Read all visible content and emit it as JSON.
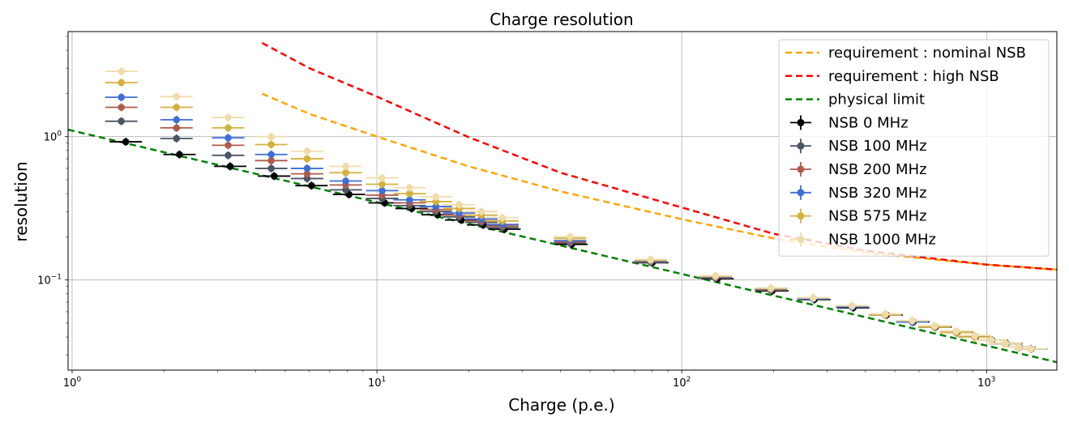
{
  "chart_data": {
    "type": "scatter",
    "title": "Charge resolution",
    "xlabel": "Charge (p.e.)",
    "ylabel": "resolution",
    "xscale": "log",
    "yscale": "log",
    "xlim": [
      0.97,
      1700
    ],
    "ylim": [
      0.0235,
      5.4
    ],
    "grid": true,
    "legend_position": "top-right",
    "x_ticks": [
      {
        "value": 1,
        "base": "10",
        "exp": "0"
      },
      {
        "value": 10,
        "base": "10",
        "exp": "1"
      },
      {
        "value": 100,
        "base": "10",
        "exp": "2"
      },
      {
        "value": 1000,
        "base": "10",
        "exp": "3"
      }
    ],
    "y_ticks": [
      {
        "value": 0.1,
        "base": "10",
        "exp": "−1"
      },
      {
        "value": 1,
        "base": "10",
        "exp": "0"
      }
    ],
    "curves": [
      {
        "name": "requirement : nominal NSB",
        "color": "#ffa500",
        "x": [
          4.2,
          6,
          10,
          20,
          40,
          100,
          200,
          400,
          1000,
          1700
        ],
        "y": [
          1.99,
          1.44,
          1.0,
          0.62,
          0.415,
          0.265,
          0.195,
          0.155,
          0.128,
          0.118
        ]
      },
      {
        "name": "requirement : high NSB",
        "color": "#ff0000",
        "x": [
          4.2,
          6,
          10,
          20,
          40,
          100,
          200,
          400,
          1000,
          1700
        ],
        "y": [
          4.5,
          3.0,
          1.9,
          0.99,
          0.56,
          0.32,
          0.21,
          0.16,
          0.128,
          0.118
        ]
      },
      {
        "name": "physical limit",
        "color": "#008000",
        "x": [
          0.97,
          1700
        ],
        "y": [
          1.117,
          0.0267
        ]
      }
    ],
    "series": [
      {
        "name": "NSB 0 MHz",
        "color": "#000000",
        "x": [
          1.5,
          2.25,
          3.3,
          4.6,
          6.1,
          8.1,
          10.6,
          13.0,
          15.8,
          18.9,
          22.3,
          26.2,
          43.5,
          80,
          131,
          198,
          272,
          365,
          470,
          575,
          680,
          800,
          920,
          1040,
          1160,
          1280,
          1400
        ],
        "y": [
          0.92,
          0.75,
          0.62,
          0.53,
          0.455,
          0.395,
          0.345,
          0.315,
          0.285,
          0.262,
          0.242,
          0.226,
          0.177,
          0.132,
          0.102,
          0.084,
          0.073,
          0.064,
          0.057,
          0.051,
          0.047,
          0.043,
          0.04,
          0.038,
          0.036,
          0.034,
          0.033
        ]
      },
      {
        "name": "NSB 100 MHz",
        "color": "#4a5563",
        "x": [
          1.45,
          2.2,
          3.25,
          4.5,
          5.9,
          7.9,
          10.4,
          12.8,
          15.6,
          18.6,
          22.0,
          25.8,
          43.0,
          79,
          129,
          196,
          270,
          362,
          465,
          570,
          675,
          795,
          915,
          1035,
          1155,
          1275,
          1395
        ],
        "y": [
          1.28,
          0.97,
          0.74,
          0.6,
          0.51,
          0.425,
          0.37,
          0.33,
          0.3,
          0.275,
          0.252,
          0.232,
          0.181,
          0.133,
          0.103,
          0.085,
          0.074,
          0.065,
          0.057,
          0.051,
          0.047,
          0.043,
          0.04,
          0.038,
          0.036,
          0.034,
          0.033
        ]
      },
      {
        "name": "NSB 200 MHz",
        "color": "#b05a4c",
        "x": [
          1.45,
          2.2,
          3.25,
          4.5,
          5.9,
          7.9,
          10.4,
          12.8,
          15.6,
          18.6,
          22.0,
          25.8,
          43.0,
          79,
          129,
          196,
          270,
          362,
          465,
          570,
          675,
          795,
          915,
          1035,
          1155,
          1275,
          1395
        ],
        "y": [
          1.6,
          1.15,
          0.87,
          0.68,
          0.55,
          0.46,
          0.39,
          0.345,
          0.31,
          0.283,
          0.258,
          0.238,
          0.184,
          0.134,
          0.104,
          0.085,
          0.074,
          0.065,
          0.057,
          0.051,
          0.047,
          0.043,
          0.04,
          0.038,
          0.036,
          0.034,
          0.033
        ]
      },
      {
        "name": "NSB 320 MHz",
        "color": "#3f6fd6",
        "x": [
          1.45,
          2.2,
          3.25,
          4.5,
          5.9,
          7.9,
          10.4,
          12.8,
          15.6,
          18.6,
          22.0,
          25.8,
          43.0,
          79,
          129,
          196,
          270,
          362,
          465,
          570,
          675,
          795,
          915,
          1035,
          1155,
          1275,
          1395
        ],
        "y": [
          1.88,
          1.31,
          0.98,
          0.75,
          0.6,
          0.49,
          0.42,
          0.362,
          0.325,
          0.293,
          0.266,
          0.244,
          0.188,
          0.135,
          0.105,
          0.086,
          0.074,
          0.065,
          0.057,
          0.051,
          0.047,
          0.043,
          0.04,
          0.038,
          0.036,
          0.034,
          0.033
        ]
      },
      {
        "name": "NSB 575 MHz",
        "color": "#d4b13d",
        "x": [
          1.45,
          2.2,
          3.25,
          4.5,
          5.9,
          7.9,
          10.4,
          12.8,
          15.6,
          18.6,
          22.0,
          25.8,
          43.0,
          79,
          129,
          196,
          270,
          362,
          465,
          570,
          675,
          795,
          915,
          1035,
          1155,
          1275,
          1395
        ],
        "y": [
          2.38,
          1.6,
          1.15,
          0.88,
          0.7,
          0.56,
          0.465,
          0.4,
          0.352,
          0.315,
          0.283,
          0.258,
          0.195,
          0.137,
          0.106,
          0.087,
          0.075,
          0.066,
          0.057,
          0.052,
          0.047,
          0.043,
          0.04,
          0.038,
          0.036,
          0.034,
          0.033
        ]
      },
      {
        "name": "NSB 1000 MHz",
        "color": "#f0dcaa",
        "x": [
          1.45,
          2.2,
          3.25,
          4.5,
          5.9,
          7.9,
          10.4,
          12.8,
          15.6,
          18.6,
          22.0,
          25.8,
          43.0,
          79,
          129,
          196,
          270,
          362,
          465,
          570,
          675,
          795,
          915,
          1035,
          1155,
          1275,
          1395
        ],
        "y": [
          2.85,
          1.9,
          1.36,
          1.0,
          0.79,
          0.62,
          0.515,
          0.44,
          0.38,
          0.335,
          0.3,
          0.272,
          0.2,
          0.139,
          0.107,
          0.088,
          0.075,
          0.066,
          0.058,
          0.052,
          0.048,
          0.044,
          0.041,
          0.038,
          0.036,
          0.034,
          0.033
        ]
      }
    ]
  }
}
